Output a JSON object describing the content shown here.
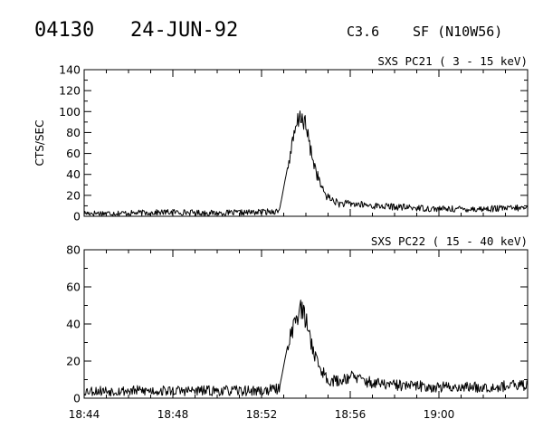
{
  "header": {
    "event_id": "04130",
    "date": "24-JUN-92",
    "goes_class": "C3.6",
    "flare_info": "SF (N10W56)"
  },
  "colors": {
    "background": "#ffffff",
    "ink": "#000000"
  },
  "chart_data": [
    {
      "type": "line",
      "title": "SXS PC21  (  3 - 15 keV)",
      "xlabel": "",
      "ylabel": "CTS/SEC",
      "xlim": [
        "18:44",
        "19:04"
      ],
      "ylim": [
        0,
        140
      ],
      "y_ticks": [
        0,
        20,
        40,
        60,
        80,
        100,
        120,
        140
      ],
      "x_ticks": [
        "18:44",
        "18:48",
        "18:52",
        "18:56",
        "19:00"
      ],
      "show_x_tick_labels": false,
      "grid": false,
      "series": [
        {
          "x": [
            "18:44",
            "18:46",
            "18:48",
            "18:50",
            "18:52",
            "18:52:48",
            "18:53:12",
            "18:53:36",
            "18:53:48",
            "18:54:00",
            "18:54:15",
            "18:54:30",
            "18:54:45",
            "18:55",
            "18:55:30",
            "18:56",
            "18:57",
            "18:58",
            "19:00",
            "19:02",
            "19:04"
          ],
          "y": [
            3,
            3,
            4,
            3,
            4,
            5,
            50,
            88,
            97,
            85,
            60,
            40,
            25,
            18,
            12,
            12,
            10,
            9,
            7,
            7,
            8
          ],
          "noise": 2.5
        }
      ]
    },
    {
      "type": "line",
      "title": "SXS PC22  ( 15 - 40 keV)",
      "xlabel": "",
      "ylabel": "",
      "xlim": [
        "18:44",
        "19:04"
      ],
      "ylim": [
        0,
        80
      ],
      "y_ticks": [
        0,
        20,
        40,
        60,
        80
      ],
      "x_ticks": [
        "18:44",
        "18:48",
        "18:52",
        "18:56",
        "19:00"
      ],
      "show_x_tick_labels": true,
      "grid": false,
      "series": [
        {
          "x": [
            "18:44",
            "18:46",
            "18:48",
            "18:50",
            "18:52",
            "18:52:48",
            "18:53:12",
            "18:53:36",
            "18:53:48",
            "18:54:00",
            "18:54:15",
            "18:54:30",
            "18:54:45",
            "18:55",
            "18:55:30",
            "18:56",
            "18:57",
            "18:58",
            "19:00",
            "19:02",
            "19:04"
          ],
          "y": [
            4,
            4,
            4,
            4,
            4,
            5,
            30,
            45,
            48,
            42,
            30,
            20,
            14,
            10,
            9,
            12,
            8,
            7,
            6,
            6,
            7
          ],
          "noise": 2.5
        }
      ]
    }
  ]
}
